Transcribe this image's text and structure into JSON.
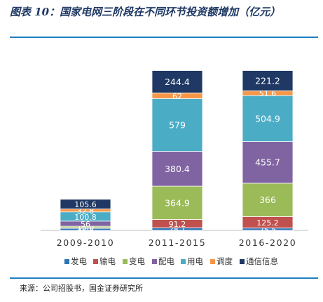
{
  "figure": {
    "title": "图表  10：国家电网三阶段在不同环节投资额增加（亿元）",
    "source": "来源：公司招股书，国金证券研究所"
  },
  "chart_data": {
    "type": "bar",
    "stacked": true,
    "categories": [
      "2009-2010",
      "2011-2015",
      "2016-2020"
    ],
    "series": [
      {
        "name": "发电",
        "color": "#2e75b6",
        "values": [
          22.4,
          28.1,
          25.5
        ]
      },
      {
        "name": "输电",
        "color": "#c0504d",
        "values": [
          8.0,
          91.2,
          125.2
        ]
      },
      {
        "name": "变电",
        "color": "#9bbb59",
        "values": [
          15.0,
          364.9,
          366
        ]
      },
      {
        "name": "配电",
        "color": "#8064a2",
        "values": [
          56,
          380.4,
          455.7
        ]
      },
      {
        "name": "用电",
        "color": "#4bacc6",
        "values": [
          100.8,
          579,
          504.9
        ]
      },
      {
        "name": "调度",
        "color": "#f79646",
        "values": [
          32.8,
          62,
          51.6
        ]
      },
      {
        "name": "通信信息",
        "color": "#1f3864",
        "values": [
          105.6,
          244.4,
          221.2
        ]
      }
    ],
    "labels": [
      [
        "22.4",
        "8.0",
        "15.0",
        "56",
        "100.8",
        "32.8",
        "105.6"
      ],
      [
        "28.1",
        "91.2",
        "364.9",
        "380.4",
        "579",
        "62",
        "244.4"
      ],
      [
        "25.5",
        "125.2",
        "366",
        "455.7",
        "504.9",
        "51.6",
        "221.2"
      ]
    ],
    "ylim": [
      0,
      1800
    ],
    "legend_position": "bottom",
    "grid": false
  }
}
